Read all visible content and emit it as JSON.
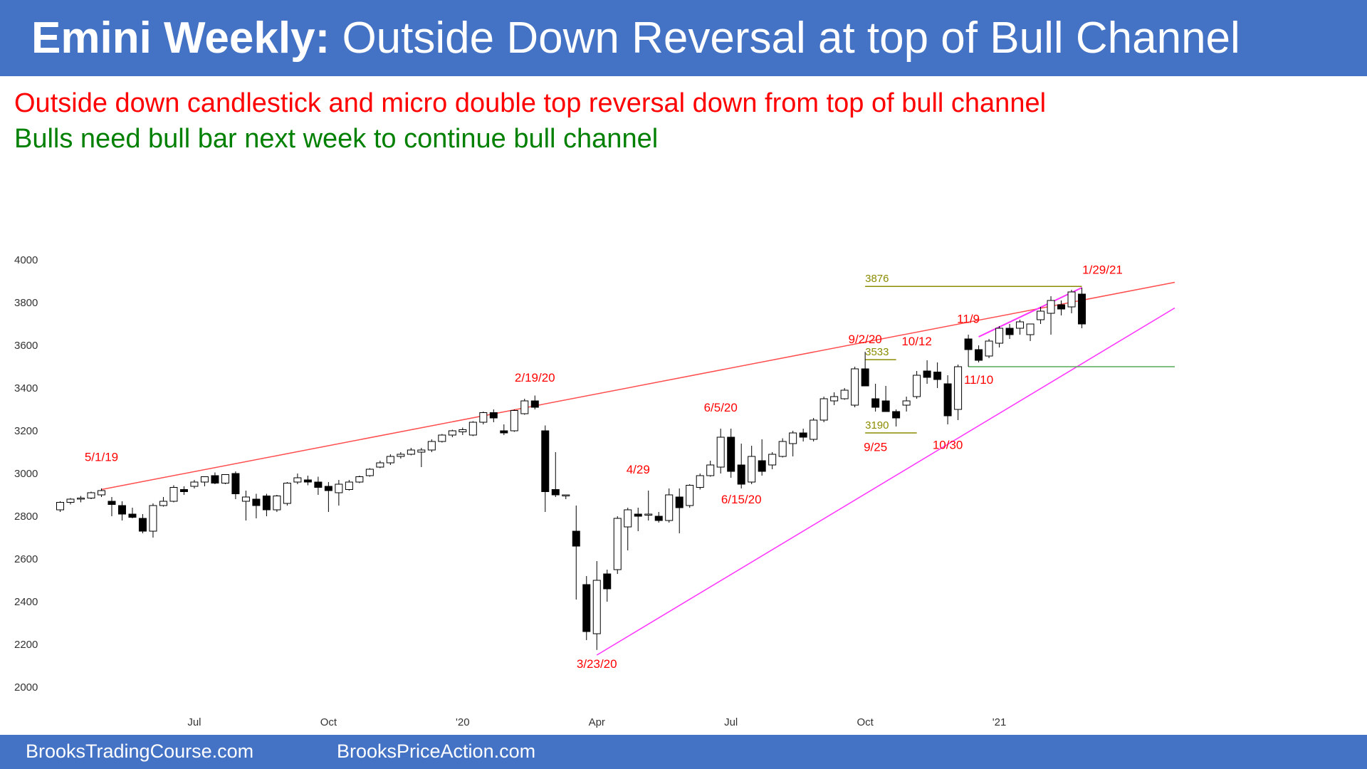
{
  "header": {
    "title_bold": "Emini Weekly:",
    "title_rest": " Outside Down Reversal at top of Bull Channel"
  },
  "subtitles": {
    "line1": "Outside down candlestick and micro double top reversal down from top of bull channel",
    "line2": "Bulls need bull bar next week to continue bull channel"
  },
  "footer": {
    "left": "BrooksTradingCourse.com",
    "right": "BrooksPriceAction.com"
  },
  "colors": {
    "header_bg": "#4472c4",
    "red_trendline": "#ff4d4d",
    "magenta_trendline": "#ff33ff",
    "olive_level": "#8b8b00",
    "green_level": "#55aa55",
    "annotation_red": "#ff0000",
    "subtitle_red": "#ff0000",
    "subtitle_green": "#008000"
  },
  "chart_data": {
    "type": "candlestick",
    "timeframe": "weekly",
    "ylim": [
      2000,
      4000
    ],
    "yticks": [
      2000,
      2200,
      2400,
      2600,
      2800,
      3000,
      3200,
      3400,
      3600,
      3800,
      4000
    ],
    "xticks": [
      {
        "label": "Jul",
        "week": 13
      },
      {
        "label": "Oct",
        "week": 26
      },
      {
        "label": "'20",
        "week": 39
      },
      {
        "label": "Apr",
        "week": 52
      },
      {
        "label": "Jul",
        "week": 65
      },
      {
        "label": "Oct",
        "week": 78
      },
      {
        "label": "'21",
        "week": 91
      }
    ],
    "x_domain": [
      -1,
      108
    ],
    "candles": [
      {
        "o": 2830,
        "h": 2870,
        "l": 2820,
        "c": 2865
      },
      {
        "o": 2865,
        "h": 2885,
        "l": 2855,
        "c": 2880
      },
      {
        "o": 2880,
        "h": 2895,
        "l": 2865,
        "c": 2885
      },
      {
        "o": 2885,
        "h": 2915,
        "l": 2880,
        "c": 2910
      },
      {
        "o": 2900,
        "h": 2930,
        "l": 2890,
        "c": 2920
      },
      {
        "o": 2870,
        "h": 2890,
        "l": 2800,
        "c": 2855
      },
      {
        "o": 2850,
        "h": 2870,
        "l": 2780,
        "c": 2810
      },
      {
        "o": 2810,
        "h": 2840,
        "l": 2790,
        "c": 2795
      },
      {
        "o": 2790,
        "h": 2810,
        "l": 2720,
        "c": 2730
      },
      {
        "o": 2730,
        "h": 2860,
        "l": 2700,
        "c": 2850
      },
      {
        "o": 2850,
        "h": 2890,
        "l": 2845,
        "c": 2870
      },
      {
        "o": 2870,
        "h": 2945,
        "l": 2865,
        "c": 2935
      },
      {
        "o": 2925,
        "h": 2940,
        "l": 2900,
        "c": 2915
      },
      {
        "o": 2940,
        "h": 2970,
        "l": 2930,
        "c": 2960
      },
      {
        "o": 2960,
        "h": 2985,
        "l": 2940,
        "c": 2985
      },
      {
        "o": 2990,
        "h": 3005,
        "l": 2950,
        "c": 2955
      },
      {
        "o": 2955,
        "h": 2995,
        "l": 2950,
        "c": 2995
      },
      {
        "o": 3000,
        "h": 3010,
        "l": 2880,
        "c": 2905
      },
      {
        "o": 2870,
        "h": 2920,
        "l": 2780,
        "c": 2890
      },
      {
        "o": 2880,
        "h": 2905,
        "l": 2790,
        "c": 2850
      },
      {
        "o": 2895,
        "h": 2905,
        "l": 2800,
        "c": 2830
      },
      {
        "o": 2830,
        "h": 2900,
        "l": 2820,
        "c": 2895
      },
      {
        "o": 2860,
        "h": 2960,
        "l": 2850,
        "c": 2955
      },
      {
        "o": 2960,
        "h": 3000,
        "l": 2950,
        "c": 2980
      },
      {
        "o": 2970,
        "h": 2990,
        "l": 2945,
        "c": 2960
      },
      {
        "o": 2960,
        "h": 2985,
        "l": 2900,
        "c": 2935
      },
      {
        "o": 2940,
        "h": 2960,
        "l": 2820,
        "c": 2920
      },
      {
        "o": 2910,
        "h": 2970,
        "l": 2850,
        "c": 2950
      },
      {
        "o": 2925,
        "h": 2970,
        "l": 2920,
        "c": 2960
      },
      {
        "o": 2960,
        "h": 2990,
        "l": 2955,
        "c": 2985
      },
      {
        "o": 2990,
        "h": 3025,
        "l": 2985,
        "c": 3020
      },
      {
        "o": 3030,
        "h": 3060,
        "l": 3025,
        "c": 3050
      },
      {
        "o": 3050,
        "h": 3090,
        "l": 3040,
        "c": 3080
      },
      {
        "o": 3080,
        "h": 3100,
        "l": 3070,
        "c": 3090
      },
      {
        "o": 3090,
        "h": 3120,
        "l": 3085,
        "c": 3110
      },
      {
        "o": 3100,
        "h": 3120,
        "l": 3030,
        "c": 3110
      },
      {
        "o": 3110,
        "h": 3160,
        "l": 3100,
        "c": 3150
      },
      {
        "o": 3150,
        "h": 3185,
        "l": 3145,
        "c": 3180
      },
      {
        "o": 3180,
        "h": 3205,
        "l": 3170,
        "c": 3200
      },
      {
        "o": 3195,
        "h": 3215,
        "l": 3180,
        "c": 3205
      },
      {
        "o": 3180,
        "h": 3245,
        "l": 3175,
        "c": 3240
      },
      {
        "o": 3240,
        "h": 3290,
        "l": 3230,
        "c": 3285
      },
      {
        "o": 3285,
        "h": 3300,
        "l": 3240,
        "c": 3260
      },
      {
        "o": 3200,
        "h": 3230,
        "l": 3180,
        "c": 3190
      },
      {
        "o": 3200,
        "h": 3300,
        "l": 3195,
        "c": 3295
      },
      {
        "o": 3280,
        "h": 3350,
        "l": 3275,
        "c": 3340
      },
      {
        "o": 3340,
        "h": 3365,
        "l": 3300,
        "c": 3310
      },
      {
        "o": 3200,
        "h": 3225,
        "l": 2820,
        "c": 2915
      },
      {
        "o": 2925,
        "h": 3100,
        "l": 2890,
        "c": 2900
      },
      {
        "o": 2900,
        "h": 2900,
        "l": 2880,
        "c": 2900
      },
      {
        "o": 2730,
        "h": 2850,
        "l": 2410,
        "c": 2660
      },
      {
        "o": 2480,
        "h": 2520,
        "l": 2220,
        "c": 2260
      },
      {
        "o": 2250,
        "h": 2590,
        "l": 2174,
        "c": 2500
      },
      {
        "o": 2530,
        "h": 2550,
        "l": 2400,
        "c": 2460
      },
      {
        "o": 2550,
        "h": 2800,
        "l": 2530,
        "c": 2790
      },
      {
        "o": 2750,
        "h": 2840,
        "l": 2640,
        "c": 2830
      },
      {
        "o": 2810,
        "h": 2840,
        "l": 2730,
        "c": 2800
      },
      {
        "o": 2810,
        "h": 2920,
        "l": 2780,
        "c": 2810
      },
      {
        "o": 2800,
        "h": 2820,
        "l": 2770,
        "c": 2780
      },
      {
        "o": 2780,
        "h": 2930,
        "l": 2770,
        "c": 2900
      },
      {
        "o": 2890,
        "h": 2930,
        "l": 2720,
        "c": 2840
      },
      {
        "o": 2850,
        "h": 2950,
        "l": 2840,
        "c": 2945
      },
      {
        "o": 2935,
        "h": 3000,
        "l": 2925,
        "c": 2990
      },
      {
        "o": 2990,
        "h": 3060,
        "l": 2985,
        "c": 3040
      },
      {
        "o": 3030,
        "h": 3210,
        "l": 3000,
        "c": 3170
      },
      {
        "o": 3170,
        "h": 3210,
        "l": 2980,
        "c": 3010
      },
      {
        "o": 3040,
        "h": 3140,
        "l": 2930,
        "c": 2950
      },
      {
        "o": 2960,
        "h": 3130,
        "l": 2950,
        "c": 3080
      },
      {
        "o": 3060,
        "h": 3160,
        "l": 2990,
        "c": 3010
      },
      {
        "o": 3040,
        "h": 3100,
        "l": 3020,
        "c": 3090
      },
      {
        "o": 3080,
        "h": 3165,
        "l": 3075,
        "c": 3150
      },
      {
        "o": 3140,
        "h": 3200,
        "l": 3080,
        "c": 3190
      },
      {
        "o": 3190,
        "h": 3210,
        "l": 3150,
        "c": 3170
      },
      {
        "o": 3160,
        "h": 3260,
        "l": 3150,
        "c": 3250
      },
      {
        "o": 3250,
        "h": 3360,
        "l": 3240,
        "c": 3350
      },
      {
        "o": 3340,
        "h": 3380,
        "l": 3320,
        "c": 3360
      },
      {
        "o": 3350,
        "h": 3400,
        "l": 3345,
        "c": 3390
      },
      {
        "o": 3320,
        "h": 3500,
        "l": 3310,
        "c": 3490
      },
      {
        "o": 3490,
        "h": 3570,
        "l": 3410,
        "c": 3410
      },
      {
        "o": 3350,
        "h": 3420,
        "l": 3290,
        "c": 3310
      },
      {
        "o": 3340,
        "h": 3410,
        "l": 3300,
        "c": 3290
      },
      {
        "o": 3290,
        "h": 3300,
        "l": 3220,
        "c": 3260
      },
      {
        "o": 3320,
        "h": 3360,
        "l": 3290,
        "c": 3340
      },
      {
        "o": 3360,
        "h": 3480,
        "l": 3350,
        "c": 3460
      },
      {
        "o": 3480,
        "h": 3530,
        "l": 3420,
        "c": 3450
      },
      {
        "o": 3475,
        "h": 3520,
        "l": 3400,
        "c": 3440
      },
      {
        "o": 3420,
        "h": 3460,
        "l": 3230,
        "c": 3270
      },
      {
        "o": 3300,
        "h": 3510,
        "l": 3250,
        "c": 3500
      },
      {
        "o": 3630,
        "h": 3650,
        "l": 3500,
        "c": 3580
      },
      {
        "o": 3580,
        "h": 3600,
        "l": 3520,
        "c": 3530
      },
      {
        "o": 3550,
        "h": 3630,
        "l": 3540,
        "c": 3620
      },
      {
        "o": 3610,
        "h": 3690,
        "l": 3590,
        "c": 3680
      },
      {
        "o": 3680,
        "h": 3700,
        "l": 3630,
        "c": 3650
      },
      {
        "o": 3680,
        "h": 3720,
        "l": 3650,
        "c": 3710
      },
      {
        "o": 3650,
        "h": 3700,
        "l": 3620,
        "c": 3700
      },
      {
        "o": 3720,
        "h": 3780,
        "l": 3700,
        "c": 3760
      },
      {
        "o": 3750,
        "h": 3830,
        "l": 3650,
        "c": 3810
      },
      {
        "o": 3790,
        "h": 3810,
        "l": 3740,
        "c": 3770
      },
      {
        "o": 3780,
        "h": 3860,
        "l": 3750,
        "c": 3850
      },
      {
        "o": 3840,
        "h": 3870,
        "l": 3680,
        "c": 3700
      }
    ],
    "trendlines": [
      {
        "name": "red",
        "from": {
          "week": 4,
          "price": 2925
        },
        "to": {
          "week": 108,
          "price": 3895
        }
      },
      {
        "name": "magenta-lower",
        "from": {
          "week": 52,
          "price": 2150
        },
        "to": {
          "week": 108,
          "price": 3775
        }
      },
      {
        "name": "magenta-upper",
        "from": {
          "week": 89,
          "price": 3640
        },
        "to": {
          "week": 99,
          "price": 3870
        }
      }
    ],
    "levels": [
      {
        "label": "3876",
        "price": 3876,
        "from_week": 78,
        "to_week": 99,
        "kind": "olive"
      },
      {
        "label": "3533",
        "price": 3533,
        "from_week": 78,
        "to_week": 81,
        "kind": "olive"
      },
      {
        "label": "3190",
        "price": 3190,
        "from_week": 78,
        "to_week": 83,
        "kind": "olive"
      },
      {
        "label": "",
        "price": 3500,
        "from_week": 88,
        "to_week": 108,
        "kind": "green"
      }
    ],
    "annotations": [
      {
        "text": "5/1/19",
        "week": 4,
        "price": 3058
      },
      {
        "text": "2/19/20",
        "week": 46,
        "price": 3430
      },
      {
        "text": "4/29",
        "week": 56,
        "price": 3000
      },
      {
        "text": "6/5/20",
        "week": 64,
        "price": 3290
      },
      {
        "text": "6/15/20",
        "week": 66,
        "price": 2860
      },
      {
        "text": "3/23/20",
        "week": 52,
        "price": 2090
      },
      {
        "text": "9/2/20",
        "week": 78,
        "price": 3610
      },
      {
        "text": "10/12",
        "week": 83,
        "price": 3600
      },
      {
        "text": "11/9",
        "week": 88,
        "price": 3705
      },
      {
        "text": "11/10",
        "week": 89,
        "price": 3420
      },
      {
        "text": "9/25",
        "week": 79,
        "price": 3105
      },
      {
        "text": "10/30",
        "week": 86,
        "price": 3115
      },
      {
        "text": "1/29/21",
        "week": 101,
        "price": 3935
      }
    ]
  }
}
